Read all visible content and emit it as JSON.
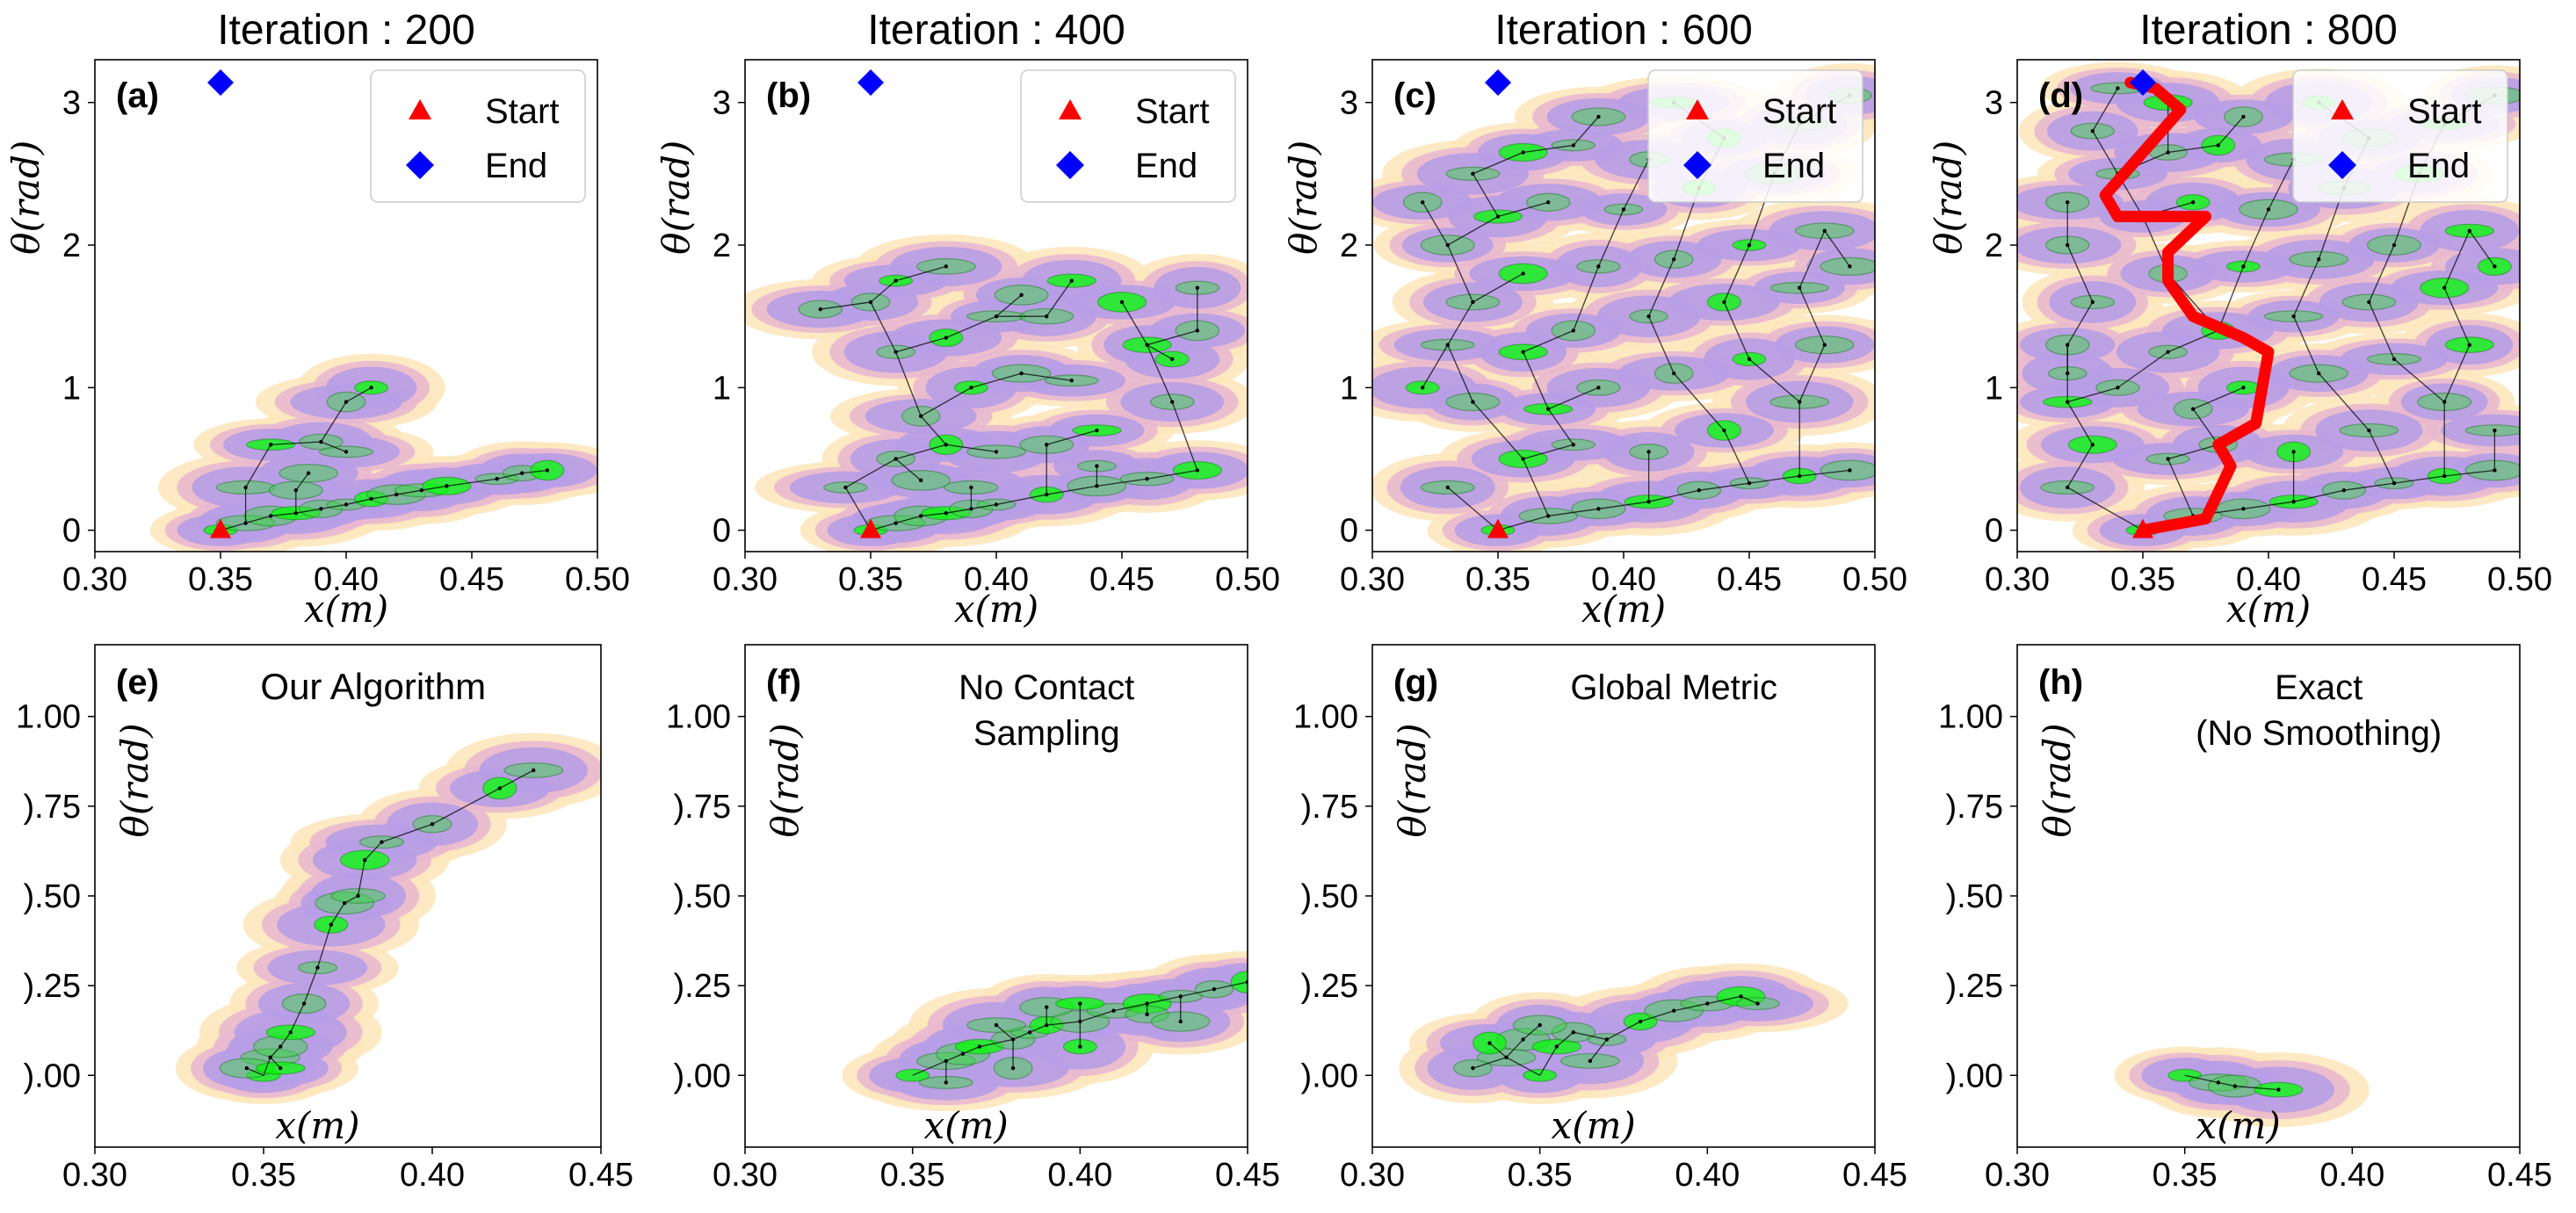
{
  "chart_data": [
    {
      "id": "a",
      "type": "scatter",
      "panel_label": "(a)",
      "title": "Iteration : 200",
      "xlabel": "x(m)",
      "ylabel": "θ(rad)",
      "xlim": [
        0.3,
        0.5
      ],
      "ylim": [
        -0.15,
        3.3
      ],
      "xticks": [
        "0.30",
        "0.35",
        "0.40",
        "0.45",
        "0.50"
      ],
      "xtick_values": [
        0.3,
        0.35,
        0.4,
        0.45,
        0.5
      ],
      "yticks": [
        "0",
        "1",
        "2",
        "3"
      ],
      "ytick_values": [
        0,
        1,
        2,
        3
      ],
      "legend": {
        "position": "top-right",
        "entries": [
          {
            "label": "Start",
            "marker": "triangle",
            "color": "#ff0000"
          },
          {
            "label": "End",
            "marker": "diamond",
            "color": "#0000ff"
          }
        ]
      },
      "start": [
        0.35,
        0.0
      ],
      "end": [
        0.35,
        3.14
      ],
      "nodes": [
        [
          0.35,
          0.0
        ],
        [
          0.36,
          0.05
        ],
        [
          0.37,
          0.1
        ],
        [
          0.38,
          0.12
        ],
        [
          0.39,
          0.15
        ],
        [
          0.4,
          0.18
        ],
        [
          0.41,
          0.22
        ],
        [
          0.42,
          0.25
        ],
        [
          0.43,
          0.28
        ],
        [
          0.44,
          0.31
        ],
        [
          0.46,
          0.36
        ],
        [
          0.47,
          0.4
        ],
        [
          0.48,
          0.42
        ],
        [
          0.36,
          0.3
        ],
        [
          0.38,
          0.28
        ],
        [
          0.37,
          0.6
        ],
        [
          0.39,
          0.62
        ],
        [
          0.4,
          0.9
        ],
        [
          0.41,
          1.0
        ],
        [
          0.385,
          0.4
        ],
        [
          0.4,
          0.55
        ]
      ]
    },
    {
      "id": "b",
      "type": "scatter",
      "panel_label": "(b)",
      "title": "Iteration : 400",
      "xlabel": "x(m)",
      "ylabel": "θ(rad)",
      "xlim": [
        0.3,
        0.5
      ],
      "ylim": [
        -0.15,
        3.3
      ],
      "xticks": [
        "0.30",
        "0.35",
        "0.40",
        "0.45",
        "0.50"
      ],
      "xtick_values": [
        0.3,
        0.35,
        0.4,
        0.45,
        0.5
      ],
      "yticks": [
        "0",
        "1",
        "2",
        "3"
      ],
      "ytick_values": [
        0,
        1,
        2,
        3
      ],
      "legend": {
        "position": "top-right",
        "entries": [
          {
            "label": "Start",
            "marker": "triangle",
            "color": "#ff0000"
          },
          {
            "label": "End",
            "marker": "diamond",
            "color": "#0000ff"
          }
        ]
      },
      "start": [
        0.35,
        0.0
      ],
      "end": [
        0.35,
        3.14
      ],
      "nodes": [
        [
          0.35,
          0.0
        ],
        [
          0.36,
          0.05
        ],
        [
          0.37,
          0.1
        ],
        [
          0.38,
          0.12
        ],
        [
          0.39,
          0.15
        ],
        [
          0.4,
          0.18
        ],
        [
          0.42,
          0.25
        ],
        [
          0.44,
          0.31
        ],
        [
          0.46,
          0.36
        ],
        [
          0.48,
          0.42
        ],
        [
          0.34,
          0.3
        ],
        [
          0.36,
          0.5
        ],
        [
          0.38,
          0.6
        ],
        [
          0.4,
          0.55
        ],
        [
          0.42,
          0.6
        ],
        [
          0.44,
          0.7
        ],
        [
          0.47,
          0.9
        ],
        [
          0.37,
          0.8
        ],
        [
          0.39,
          1.0
        ],
        [
          0.41,
          1.1
        ],
        [
          0.43,
          1.05
        ],
        [
          0.46,
          1.3
        ],
        [
          0.48,
          1.4
        ],
        [
          0.36,
          1.25
        ],
        [
          0.38,
          1.35
        ],
        [
          0.4,
          1.5
        ],
        [
          0.42,
          1.5
        ],
        [
          0.45,
          1.6
        ],
        [
          0.48,
          1.7
        ],
        [
          0.35,
          1.6
        ],
        [
          0.36,
          1.75
        ],
        [
          0.38,
          1.85
        ],
        [
          0.41,
          1.65
        ],
        [
          0.43,
          1.75
        ],
        [
          0.33,
          1.55
        ],
        [
          0.44,
          0.45
        ],
        [
          0.47,
          1.2
        ],
        [
          0.37,
          0.35
        ],
        [
          0.39,
          0.3
        ]
      ]
    },
    {
      "id": "c",
      "type": "scatter",
      "panel_label": "(c)",
      "title": "Iteration : 600",
      "xlabel": "x(m)",
      "ylabel": "θ(rad)",
      "xlim": [
        0.3,
        0.5
      ],
      "ylim": [
        -0.15,
        3.3
      ],
      "xticks": [
        "0.30",
        "0.35",
        "0.40",
        "0.45",
        "0.50"
      ],
      "xtick_values": [
        0.3,
        0.35,
        0.4,
        0.45,
        0.5
      ],
      "yticks": [
        "0",
        "1",
        "2",
        "3"
      ],
      "ytick_values": [
        0,
        1,
        2,
        3
      ],
      "legend": {
        "position": "top-right",
        "entries": [
          {
            "label": "Start",
            "marker": "triangle",
            "color": "#ff0000"
          },
          {
            "label": "End",
            "marker": "diamond",
            "color": "#0000ff"
          }
        ]
      },
      "start": [
        0.35,
        0.0
      ],
      "end": [
        0.35,
        3.14
      ],
      "nodes": [
        [
          0.35,
          0.0
        ],
        [
          0.37,
          0.1
        ],
        [
          0.39,
          0.15
        ],
        [
          0.41,
          0.2
        ],
        [
          0.43,
          0.28
        ],
        [
          0.45,
          0.33
        ],
        [
          0.47,
          0.38
        ],
        [
          0.49,
          0.42
        ],
        [
          0.33,
          0.3
        ],
        [
          0.36,
          0.5
        ],
        [
          0.38,
          0.6
        ],
        [
          0.41,
          0.55
        ],
        [
          0.44,
          0.7
        ],
        [
          0.47,
          0.9
        ],
        [
          0.34,
          0.9
        ],
        [
          0.37,
          0.85
        ],
        [
          0.39,
          1.0
        ],
        [
          0.42,
          1.1
        ],
        [
          0.45,
          1.2
        ],
        [
          0.48,
          1.3
        ],
        [
          0.33,
          1.3
        ],
        [
          0.36,
          1.25
        ],
        [
          0.38,
          1.4
        ],
        [
          0.41,
          1.5
        ],
        [
          0.44,
          1.6
        ],
        [
          0.47,
          1.7
        ],
        [
          0.34,
          1.6
        ],
        [
          0.36,
          1.8
        ],
        [
          0.39,
          1.85
        ],
        [
          0.42,
          1.9
        ],
        [
          0.45,
          2.0
        ],
        [
          0.48,
          2.1
        ],
        [
          0.33,
          2.0
        ],
        [
          0.35,
          2.2
        ],
        [
          0.37,
          2.3
        ],
        [
          0.4,
          2.25
        ],
        [
          0.43,
          2.4
        ],
        [
          0.46,
          2.5
        ],
        [
          0.34,
          2.5
        ],
        [
          0.36,
          2.65
        ],
        [
          0.38,
          2.7
        ],
        [
          0.41,
          2.6
        ],
        [
          0.44,
          2.75
        ],
        [
          0.47,
          2.85
        ],
        [
          0.39,
          2.9
        ],
        [
          0.42,
          3.0
        ],
        [
          0.49,
          3.05
        ],
        [
          0.32,
          2.3
        ],
        [
          0.32,
          1.0
        ],
        [
          0.49,
          1.85
        ]
      ]
    },
    {
      "id": "d",
      "type": "scatter",
      "panel_label": "(d)",
      "title": "Iteration : 800",
      "xlabel": "x(m)",
      "ylabel": "θ(rad)",
      "xlim": [
        0.3,
        0.5
      ],
      "ylim": [
        -0.15,
        3.3
      ],
      "xticks": [
        "0.30",
        "0.35",
        "0.40",
        "0.45",
        "0.50"
      ],
      "xtick_values": [
        0.3,
        0.35,
        0.4,
        0.45,
        0.5
      ],
      "yticks": [
        "0",
        "1",
        "2",
        "3"
      ],
      "ytick_values": [
        0,
        1,
        2,
        3
      ],
      "legend": {
        "position": "top-right",
        "entries": [
          {
            "label": "Start",
            "marker": "triangle",
            "color": "#ff0000"
          },
          {
            "label": "End",
            "marker": "diamond",
            "color": "#0000ff"
          }
        ]
      },
      "start": [
        0.35,
        0.0
      ],
      "end": [
        0.35,
        3.14
      ],
      "nodes": [
        [
          0.35,
          0.0
        ],
        [
          0.37,
          0.1
        ],
        [
          0.39,
          0.15
        ],
        [
          0.41,
          0.2
        ],
        [
          0.43,
          0.28
        ],
        [
          0.45,
          0.33
        ],
        [
          0.47,
          0.38
        ],
        [
          0.49,
          0.42
        ],
        [
          0.32,
          0.3
        ],
        [
          0.33,
          0.6
        ],
        [
          0.36,
          0.5
        ],
        [
          0.38,
          0.6
        ],
        [
          0.41,
          0.55
        ],
        [
          0.44,
          0.7
        ],
        [
          0.47,
          0.9
        ],
        [
          0.32,
          0.9
        ],
        [
          0.34,
          1.0
        ],
        [
          0.37,
          0.85
        ],
        [
          0.39,
          1.0
        ],
        [
          0.42,
          1.1
        ],
        [
          0.45,
          1.2
        ],
        [
          0.48,
          1.3
        ],
        [
          0.32,
          1.3
        ],
        [
          0.36,
          1.25
        ],
        [
          0.38,
          1.4
        ],
        [
          0.41,
          1.5
        ],
        [
          0.44,
          1.6
        ],
        [
          0.47,
          1.7
        ],
        [
          0.33,
          1.6
        ],
        [
          0.36,
          1.8
        ],
        [
          0.39,
          1.85
        ],
        [
          0.42,
          1.9
        ],
        [
          0.45,
          2.0
        ],
        [
          0.48,
          2.1
        ],
        [
          0.32,
          2.0
        ],
        [
          0.35,
          2.2
        ],
        [
          0.37,
          2.3
        ],
        [
          0.4,
          2.25
        ],
        [
          0.43,
          2.4
        ],
        [
          0.46,
          2.5
        ],
        [
          0.34,
          2.5
        ],
        [
          0.36,
          2.65
        ],
        [
          0.38,
          2.7
        ],
        [
          0.41,
          2.6
        ],
        [
          0.44,
          2.75
        ],
        [
          0.47,
          2.85
        ],
        [
          0.33,
          2.8
        ],
        [
          0.39,
          2.9
        ],
        [
          0.42,
          3.0
        ],
        [
          0.49,
          3.05
        ],
        [
          0.34,
          3.1
        ],
        [
          0.36,
          3.0
        ],
        [
          0.32,
          2.3
        ],
        [
          0.32,
          1.1
        ],
        [
          0.49,
          1.85
        ],
        [
          0.49,
          0.7
        ]
      ],
      "path": [
        [
          0.35,
          0.0
        ],
        [
          0.375,
          0.08
        ],
        [
          0.385,
          0.45
        ],
        [
          0.38,
          0.6
        ],
        [
          0.395,
          0.75
        ],
        [
          0.4,
          1.25
        ],
        [
          0.39,
          1.35
        ],
        [
          0.37,
          1.5
        ],
        [
          0.36,
          1.75
        ],
        [
          0.36,
          1.95
        ],
        [
          0.375,
          2.2
        ],
        [
          0.34,
          2.2
        ],
        [
          0.335,
          2.35
        ],
        [
          0.345,
          2.55
        ],
        [
          0.355,
          2.75
        ],
        [
          0.365,
          2.95
        ],
        [
          0.355,
          3.1
        ],
        [
          0.345,
          3.14
        ]
      ]
    },
    {
      "id": "e",
      "type": "scatter",
      "panel_label": "(e)",
      "annotation": "Our Algorithm",
      "xlabel": "x(m)",
      "ylabel": "θ(rad)",
      "xlim": [
        0.3,
        0.45
      ],
      "ylim": [
        -0.2,
        1.2
      ],
      "xticks": [
        "0.30",
        "0.35",
        "0.40",
        "0.45"
      ],
      "xtick_values": [
        0.3,
        0.35,
        0.4,
        0.45
      ],
      "yticks": [
        ").00",
        ").25",
        ").50",
        ").75",
        "1.00"
      ],
      "ytick_values": [
        0.0,
        0.25,
        0.5,
        0.75,
        1.0
      ],
      "nodes": [
        [
          0.35,
          0.0
        ],
        [
          0.352,
          0.05
        ],
        [
          0.355,
          0.08
        ],
        [
          0.358,
          0.12
        ],
        [
          0.362,
          0.2
        ],
        [
          0.366,
          0.3
        ],
        [
          0.37,
          0.42
        ],
        [
          0.374,
          0.48
        ],
        [
          0.378,
          0.5
        ],
        [
          0.38,
          0.6
        ],
        [
          0.385,
          0.65
        ],
        [
          0.4,
          0.7
        ],
        [
          0.42,
          0.8
        ],
        [
          0.43,
          0.85
        ],
        [
          0.345,
          0.02
        ],
        [
          0.355,
          0.02
        ]
      ]
    },
    {
      "id": "f",
      "type": "scatter",
      "panel_label": "(f)",
      "annotation": "No Contact\nSampling",
      "xlabel": "x(m)",
      "ylabel": "θ(rad)",
      "xlim": [
        0.3,
        0.45
      ],
      "ylim": [
        -0.2,
        1.2
      ],
      "xticks": [
        "0.30",
        "0.35",
        "0.40",
        "0.45"
      ],
      "xtick_values": [
        0.3,
        0.35,
        0.4,
        0.45
      ],
      "yticks": [
        ").00",
        ").25",
        ").50",
        ").75",
        "1.00"
      ],
      "ytick_values": [
        0.0,
        0.25,
        0.5,
        0.75,
        1.0
      ],
      "nodes": [
        [
          0.35,
          0.0
        ],
        [
          0.36,
          0.04
        ],
        [
          0.365,
          0.06
        ],
        [
          0.37,
          0.08
        ],
        [
          0.38,
          0.1
        ],
        [
          0.385,
          0.12
        ],
        [
          0.39,
          0.14
        ],
        [
          0.4,
          0.15
        ],
        [
          0.41,
          0.18
        ],
        [
          0.42,
          0.2
        ],
        [
          0.43,
          0.22
        ],
        [
          0.44,
          0.24
        ],
        [
          0.45,
          0.26
        ],
        [
          0.375,
          0.14
        ],
        [
          0.39,
          0.19
        ],
        [
          0.4,
          0.2
        ],
        [
          0.42,
          0.17
        ],
        [
          0.38,
          0.02
        ],
        [
          0.4,
          0.08
        ],
        [
          0.43,
          0.15
        ],
        [
          0.36,
          -0.02
        ]
      ]
    },
    {
      "id": "g",
      "type": "scatter",
      "panel_label": "(g)",
      "annotation": "Global Metric",
      "xlabel": "x(m)",
      "ylabel": "θ(rad)",
      "xlim": [
        0.3,
        0.45
      ],
      "ylim": [
        -0.2,
        1.2
      ],
      "xticks": [
        "0.30",
        "0.35",
        "0.40",
        "0.45"
      ],
      "xtick_values": [
        0.3,
        0.35,
        0.4,
        0.45
      ],
      "yticks": [
        ").00",
        ").25",
        ").50",
        ").75",
        "1.00"
      ],
      "ytick_values": [
        0.0,
        0.25,
        0.5,
        0.75,
        1.0
      ],
      "nodes": [
        [
          0.35,
          0.0
        ],
        [
          0.34,
          0.05
        ],
        [
          0.345,
          0.1
        ],
        [
          0.355,
          0.08
        ],
        [
          0.36,
          0.12
        ],
        [
          0.37,
          0.1
        ],
        [
          0.38,
          0.15
        ],
        [
          0.39,
          0.18
        ],
        [
          0.4,
          0.2
        ],
        [
          0.41,
          0.22
        ],
        [
          0.415,
          0.2
        ],
        [
          0.33,
          0.02
        ],
        [
          0.335,
          0.09
        ],
        [
          0.365,
          0.04
        ],
        [
          0.35,
          0.14
        ]
      ]
    },
    {
      "id": "h",
      "type": "scatter",
      "panel_label": "(h)",
      "annotation": "Exact\n(No Smoothing)",
      "xlabel": "x(m)",
      "ylabel": "θ(rad)",
      "xlim": [
        0.3,
        0.45
      ],
      "ylim": [
        -0.2,
        1.2
      ],
      "xticks": [
        "0.30",
        "0.35",
        "0.40",
        "0.45"
      ],
      "xtick_values": [
        0.3,
        0.35,
        0.4,
        0.45
      ],
      "yticks": [
        ").00",
        ").25",
        ").50",
        ").75",
        "1.00"
      ],
      "ytick_values": [
        0.0,
        0.25,
        0.5,
        0.75,
        1.0
      ],
      "nodes": [
        [
          0.35,
          0.0
        ],
        [
          0.36,
          -0.02
        ],
        [
          0.365,
          -0.03
        ],
        [
          0.378,
          -0.04
        ]
      ]
    }
  ],
  "colors": {
    "halo_outer": "#fde7bd",
    "halo_mid": "#e9b9cf",
    "halo_inner": "#b79de6",
    "node_fill": "#3fd34a",
    "node_fill_bright": "#00ff00",
    "edge": "#000000",
    "path": "#ff0000",
    "start": "#ff0000",
    "end": "#0000ff"
  }
}
